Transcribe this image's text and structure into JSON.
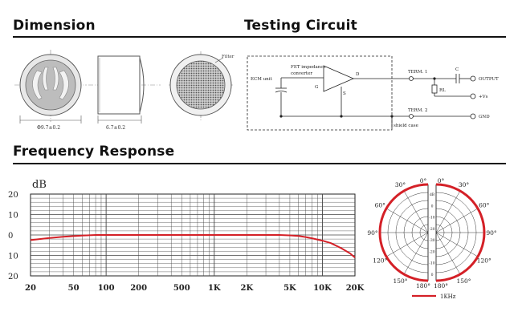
{
  "headings": {
    "dimension": "Dimension",
    "testing_circuit": "Testing Circuit",
    "frequency_response": "Frequency Response"
  },
  "dimension": {
    "diameter": "Φ9.7±0.2",
    "height": "6.7±0.2",
    "filter_label": "Filter"
  },
  "circuit": {
    "ecm_unit": "ECM unit",
    "fet_line1": "FET impedance",
    "fet_line2": "converter",
    "g": "G",
    "d": "D",
    "s": "S",
    "term1": "TERM. 1",
    "term2": "TERM. 2",
    "c": "C",
    "rl": "RL",
    "output": "OUTPUT",
    "vs": "+Vs",
    "gnd": "GND",
    "shield_case": "shield case"
  },
  "chart_data": [
    {
      "type": "line",
      "ylabel": "dB",
      "x_scale": "log",
      "xlim": [
        20,
        20000
      ],
      "ylim": [
        -20,
        20
      ],
      "y_tick_labels": [
        "20",
        "10",
        "0",
        "10",
        "20"
      ],
      "y_tick_values": [
        20,
        10,
        0,
        -10,
        -20
      ],
      "x_tick_labels": [
        "20",
        "50",
        "100",
        "200",
        "500",
        "1K",
        "2K",
        "5K",
        "10K",
        "20K"
      ],
      "x_tick_values": [
        20,
        50,
        100,
        200,
        500,
        1000,
        2000,
        5000,
        10000,
        20000
      ],
      "series": [
        {
          "color": "#d42027",
          "x": [
            20,
            30,
            40,
            60,
            80,
            100,
            200,
            500,
            1000,
            2000,
            4000,
            5000,
            6000,
            7000,
            8000,
            10000,
            12000,
            15000,
            18000,
            20000
          ],
          "y": [
            -2.5,
            -1.5,
            -0.9,
            -0.3,
            0,
            0,
            0,
            0,
            0,
            0,
            0,
            -0.2,
            -0.5,
            -1,
            -1.6,
            -2.8,
            -4,
            -6.5,
            -9,
            -11
          ]
        }
      ]
    },
    {
      "type": "polar",
      "angle_labels": [
        "0°",
        "0°",
        "30°",
        "30°",
        "60°",
        "60°",
        "90°",
        "90°",
        "120°",
        "120°",
        "150°",
        "150°",
        "180°",
        "180°"
      ],
      "radial_labels": [
        "dB",
        "0",
        "-10",
        "-20",
        "-30",
        "-20",
        "-10",
        "0"
      ],
      "legend": "1KHz",
      "series": [
        {
          "name": "1KHz",
          "color": "#d42027",
          "pattern": "omnidirectional",
          "level_db": 0
        }
      ]
    }
  ]
}
